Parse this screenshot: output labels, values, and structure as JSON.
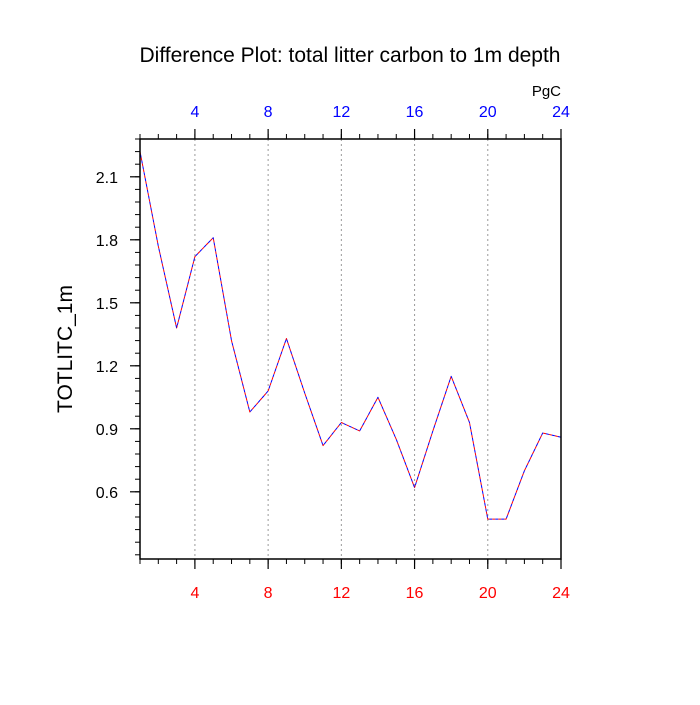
{
  "chart_data": {
    "type": "line",
    "title": "Difference Plot: total litter carbon to 1m depth",
    "ylabel": "TOTLITC_1m",
    "top_axis_unit": "PgC",
    "xlim": [
      1,
      24
    ],
    "ylim": [
      0.28,
      2.28
    ],
    "x_ticks": [
      4,
      8,
      12,
      16,
      20,
      24
    ],
    "y_ticks": [
      0.6,
      0.9,
      1.2,
      1.5,
      1.8,
      2.1
    ],
    "y_tick_labels": [
      "0.6",
      "0.9",
      "1.2",
      "1.5",
      "1.8",
      "2.1"
    ],
    "x_minor_step": 1,
    "y_minor_step": 0.06,
    "grid": "vertical dotted at major x ticks",
    "colors": {
      "bottom_axis_labels": "#ff0000",
      "top_axis_labels": "#0000ff",
      "series_a": "#ff0000",
      "series_b": "#0000ff",
      "axis": "#000000",
      "grid": "#9a9a9a"
    },
    "series": [
      {
        "line_style": "dashed",
        "color": "#ff0000",
        "x": [
          1,
          2,
          3,
          4,
          5,
          6,
          7,
          8,
          9,
          10,
          11,
          12,
          13,
          14,
          15,
          16,
          17,
          18,
          19,
          20,
          21,
          22,
          23,
          24
        ],
        "values": [
          2.22,
          1.77,
          1.38,
          1.72,
          1.81,
          1.32,
          0.98,
          1.08,
          1.33,
          1.07,
          0.82,
          0.93,
          0.89,
          1.05,
          0.85,
          0.62,
          0.89,
          1.15,
          0.93,
          0.47,
          0.47,
          0.7,
          0.88,
          0.86
        ]
      },
      {
        "line_style": "dashed",
        "color": "#0000ff",
        "x": [
          1,
          2,
          3,
          4,
          5,
          6,
          7,
          8,
          9,
          10,
          11,
          12,
          13,
          14,
          15,
          16,
          17,
          18,
          19,
          20,
          21,
          22,
          23,
          24
        ],
        "values": [
          2.22,
          1.77,
          1.38,
          1.72,
          1.81,
          1.32,
          0.98,
          1.08,
          1.33,
          1.07,
          0.82,
          0.93,
          0.89,
          1.05,
          0.85,
          0.62,
          0.89,
          1.15,
          0.93,
          0.47,
          0.47,
          0.7,
          0.88,
          0.86
        ]
      }
    ]
  }
}
